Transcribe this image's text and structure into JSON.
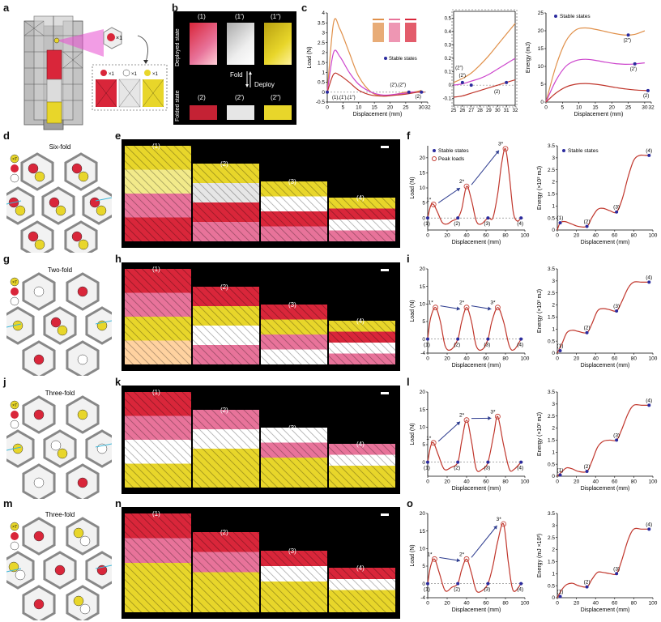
{
  "panel_letters": {
    "a": "a",
    "b": "b",
    "c": "c",
    "d": "d",
    "e": "e",
    "f": "f",
    "g": "g",
    "h": "h",
    "i": "i",
    "j": "j",
    "k": "k",
    "l": "l",
    "m": "m",
    "n": "n",
    "o": "o"
  },
  "panel_a": {
    "callout_x1": "×1",
    "legend_x1a": "×1",
    "legend_x1b": "×1",
    "legend_x1c": "×1"
  },
  "panel_b": {
    "row_labels": [
      "Deployed state",
      "Folded state"
    ],
    "top_labels": [
      "(1)",
      "(1′)",
      "(1″)"
    ],
    "bottom_labels": [
      "(2)",
      "(2′)",
      "(2″)"
    ],
    "fold": "Fold",
    "deploy": "Deploy"
  },
  "colors": {
    "red": "#d9263a",
    "pink": "#e8739a",
    "yellow": "#e8d62a",
    "white": "#dddddd",
    "gray": "#9a9a9a",
    "curve": "#c0362c",
    "orange": "#e0904a",
    "magenta": "#cc44cc",
    "stable": "#2b2b9e",
    "arrow": "#2b3a8e"
  },
  "hex_panels": [
    {
      "letter": "d",
      "title": "Six-fold",
      "legend": [
        "×7",
        "",
        ""
      ]
    },
    {
      "letter": "g",
      "title": "Two-fold",
      "legend": [
        "×7",
        "",
        ""
      ]
    },
    {
      "letter": "j",
      "title": "Three-fold",
      "legend": [
        "×7",
        "",
        ""
      ]
    },
    {
      "letter": "m",
      "title": "Three-fold",
      "legend": [
        "×7",
        "",
        ""
      ]
    }
  ],
  "photo_labels": [
    "(1)",
    "(2)",
    "(3)",
    "(4)"
  ],
  "chart_data": [
    {
      "id": "c-load",
      "type": "line",
      "xlabel": "Displacement (mm)",
      "ylabel": "Load (N)",
      "xlim": [
        0,
        32
      ],
      "ylim": [
        -0.5,
        4.0
      ],
      "xticks": [
        0,
        5,
        10,
        15,
        20,
        25,
        30,
        32
      ],
      "yticks": [
        -0.5,
        0,
        0.5,
        1.0,
        1.5,
        2.0,
        2.5,
        3.0,
        3.5,
        4.0
      ],
      "legend": "Stable states",
      "annotations": [
        "(1),(1′),(1″)",
        "(2′),(2″)",
        "(2)"
      ],
      "series": [
        {
          "color": "#e0904a",
          "x": [
            0,
            2,
            4,
            7,
            10,
            14,
            18,
            22,
            25,
            27,
            29,
            30
          ],
          "y": [
            0,
            3.5,
            3.2,
            2.0,
            0.8,
            0.0,
            -0.2,
            -0.1,
            0.0,
            0.0,
            0.05,
            0.1
          ]
        },
        {
          "color": "#cc44cc",
          "x": [
            0,
            2,
            4,
            7,
            10,
            14,
            18,
            22,
            25,
            27,
            29,
            30
          ],
          "y": [
            0,
            2.0,
            1.8,
            1.0,
            0.4,
            0.0,
            -0.15,
            -0.1,
            -0.05,
            0.0,
            0.0,
            0.05
          ]
        },
        {
          "color": "#c0362c",
          "x": [
            0,
            2,
            4,
            7,
            10,
            14,
            18,
            22,
            25,
            27,
            29,
            31
          ],
          "y": [
            0,
            0.9,
            0.85,
            0.5,
            0.1,
            -0.15,
            -0.2,
            -0.15,
            -0.1,
            -0.05,
            0.0,
            0.0
          ]
        }
      ]
    },
    {
      "id": "c-zoom",
      "type": "line",
      "xlim": [
        25,
        32
      ],
      "ylim": [
        -0.15,
        0.55
      ],
      "xticks": [
        25,
        26,
        27,
        28,
        29,
        30,
        31,
        32
      ],
      "yticks": [
        -0.1,
        0,
        0.1,
        0.2,
        0.3,
        0.4,
        0.5
      ],
      "annotations": [
        "(2″)",
        "(2′)",
        "(2)"
      ],
      "series": [
        {
          "color": "#e0904a",
          "x": [
            25,
            26,
            27,
            28,
            29,
            30,
            31,
            32
          ],
          "y": [
            0.02,
            0.05,
            0.09,
            0.15,
            0.22,
            0.3,
            0.38,
            0.46
          ]
        },
        {
          "color": "#cc44cc",
          "x": [
            25,
            26,
            27,
            28,
            29,
            30,
            31,
            32
          ],
          "y": [
            0.0,
            0.01,
            0.03,
            0.05,
            0.08,
            0.12,
            0.16,
            0.2
          ]
        },
        {
          "color": "#c0362c",
          "x": [
            25,
            26,
            27,
            28,
            29,
            30,
            31,
            32
          ],
          "y": [
            -0.09,
            -0.08,
            -0.06,
            -0.04,
            -0.02,
            0.0,
            0.02,
            0.04
          ]
        }
      ]
    },
    {
      "id": "c-energy",
      "type": "line",
      "xlabel": "Displacement (mm)",
      "ylabel": "Energy (mJ)",
      "xlim": [
        0,
        32
      ],
      "ylim": [
        0,
        25
      ],
      "xticks": [
        0,
        5,
        10,
        15,
        20,
        25,
        30,
        32
      ],
      "yticks": [
        0,
        5,
        10,
        15,
        20,
        25
      ],
      "legend": "Stable states",
      "annotations": [
        "(2″)",
        "(2′)",
        "(2)"
      ],
      "series": [
        {
          "color": "#e0904a",
          "x": [
            0,
            3,
            6,
            9,
            12,
            15,
            18,
            21,
            24,
            27,
            30
          ],
          "y": [
            0,
            10,
            17,
            20.2,
            20.8,
            20.4,
            19.8,
            19.2,
            18.8,
            19.0,
            20.0
          ]
        },
        {
          "color": "#cc44cc",
          "x": [
            0,
            3,
            6,
            9,
            12,
            15,
            18,
            21,
            24,
            27,
            30
          ],
          "y": [
            0,
            6,
            10,
            11.6,
            12.0,
            11.7,
            11.2,
            10.8,
            10.6,
            10.7,
            11.0
          ]
        },
        {
          "color": "#c0362c",
          "x": [
            0,
            3,
            6,
            9,
            12,
            15,
            18,
            21,
            24,
            27,
            31
          ],
          "y": [
            0,
            2.5,
            4.2,
            5.0,
            5.2,
            5.0,
            4.6,
            4.1,
            3.7,
            3.4,
            3.2
          ]
        }
      ],
      "stable_points": [
        [
          25,
          18.8
        ],
        [
          27,
          10.7
        ],
        [
          31,
          3.2
        ]
      ]
    },
    {
      "id": "f-load",
      "type": "line",
      "xlabel": "Displacement (mm)",
      "ylabel": "Load (N)",
      "xlim": [
        0,
        100
      ],
      "ylim": [
        -4,
        24
      ],
      "xticks": [
        0,
        20,
        40,
        60,
        80,
        100
      ],
      "yticks": [
        0,
        5,
        10,
        15,
        20
      ],
      "legend": [
        "Stable states",
        "Peak loads"
      ],
      "x": [
        0,
        3,
        6,
        10,
        15,
        20,
        25,
        31,
        35,
        40,
        45,
        50,
        55,
        62,
        67,
        72,
        76,
        80,
        84,
        88,
        92,
        96
      ],
      "y": [
        0,
        4,
        4.5,
        2,
        -1.5,
        -2,
        -1,
        0,
        3,
        10.5,
        6,
        -1,
        -2,
        0,
        0,
        8,
        18,
        23,
        14,
        2,
        -1,
        0
      ],
      "peaks": [
        [
          6,
          4.5,
          "1*"
        ],
        [
          40,
          10.5,
          "2*"
        ],
        [
          80,
          23,
          "3*"
        ]
      ],
      "stable": [
        [
          0,
          0,
          "(1)"
        ],
        [
          31,
          0,
          "(2)"
        ],
        [
          62,
          0,
          "(3)"
        ],
        [
          96,
          0,
          "(4)"
        ]
      ]
    },
    {
      "id": "f-energy",
      "type": "line",
      "xlabel": "Displacement (mm)",
      "ylabel": "Energy (×10² mJ)",
      "xlim": [
        0,
        100
      ],
      "ylim": [
        0,
        3.5
      ],
      "xticks": [
        0,
        20,
        40,
        60,
        80,
        100
      ],
      "yticks": [
        0,
        0.5,
        1.0,
        1.5,
        2.0,
        2.5,
        3.0,
        3.5
      ],
      "legend": [
        "Stable states"
      ],
      "x": [
        0,
        3,
        8,
        15,
        22,
        31,
        36,
        42,
        48,
        55,
        62,
        68,
        74,
        80,
        86,
        92,
        96
      ],
      "y": [
        0,
        0.3,
        0.35,
        0.25,
        0.15,
        0.15,
        0.5,
        0.85,
        0.9,
        0.8,
        0.75,
        1.3,
        2.2,
        2.9,
        3.1,
        3.1,
        3.1
      ],
      "stable": [
        [
          3,
          0.3,
          "(1)"
        ],
        [
          31,
          0.15,
          "(2)"
        ],
        [
          62,
          0.75,
          "(3)"
        ],
        [
          96,
          3.1,
          "(4)"
        ]
      ]
    },
    {
      "id": "i-load",
      "type": "line",
      "xlabel": "Displacement (mm)",
      "ylabel": "Load (N)",
      "xlim": [
        0,
        100
      ],
      "ylim": [
        -4,
        20
      ],
      "xticks": [
        0,
        20,
        40,
        60,
        80,
        100
      ],
      "yticks": [
        -4,
        0,
        5,
        10,
        15,
        20
      ],
      "x": [
        0,
        3,
        8,
        13,
        18,
        24,
        31,
        35,
        40,
        45,
        50,
        56,
        62,
        66,
        72,
        78,
        84,
        89,
        96
      ],
      "y": [
        0,
        6,
        9,
        5,
        -2,
        -3,
        0,
        5,
        9,
        5,
        -2,
        -3,
        0,
        5,
        9,
        5,
        -2,
        -3,
        0
      ],
      "peaks": [
        [
          8,
          9,
          "1*"
        ],
        [
          40,
          9,
          "2*"
        ],
        [
          72,
          9,
          "3*"
        ]
      ],
      "stable": [
        [
          0,
          0,
          "(1)"
        ],
        [
          31,
          0,
          "(2)"
        ],
        [
          62,
          0,
          "(3)"
        ],
        [
          96,
          0,
          "(4)"
        ]
      ]
    },
    {
      "id": "i-energy",
      "type": "line",
      "xlabel": "Displacement (mm)",
      "ylabel": "Energy (×10² mJ)",
      "xlim": [
        0,
        100
      ],
      "ylim": [
        0,
        3.5
      ],
      "xticks": [
        0,
        20,
        40,
        60,
        80,
        100
      ],
      "yticks": [
        0,
        0.5,
        1.0,
        1.5,
        2.0,
        2.5,
        3.0,
        3.5
      ],
      "x": [
        0,
        5,
        10,
        16,
        22,
        31,
        36,
        42,
        48,
        55,
        62,
        67,
        74,
        80,
        88,
        96
      ],
      "y": [
        0,
        0.4,
        0.85,
        0.95,
        0.9,
        0.85,
        1.2,
        1.75,
        1.85,
        1.8,
        1.75,
        2.1,
        2.7,
        2.95,
        2.95,
        2.95
      ],
      "stable": [
        [
          3,
          0.1,
          "(1)"
        ],
        [
          31,
          0.85,
          "(2)"
        ],
        [
          62,
          1.75,
          "(3)"
        ],
        [
          96,
          2.95,
          "(4)"
        ]
      ]
    },
    {
      "id": "l-load",
      "type": "line",
      "xlabel": "Displacement (mm)",
      "ylabel": "Load (N)",
      "xlim": [
        0,
        100
      ],
      "ylim": [
        -4,
        20
      ],
      "xticks": [
        0,
        20,
        40,
        60,
        80,
        100
      ],
      "yticks": [
        0,
        5,
        10,
        15,
        20
      ],
      "x": [
        0,
        3,
        6,
        11,
        17,
        24,
        31,
        35,
        40,
        45,
        50,
        56,
        62,
        68,
        72,
        78,
        84,
        89,
        96
      ],
      "y": [
        0,
        4.5,
        5.5,
        2,
        -2,
        -1.5,
        0,
        6,
        12,
        6,
        -2,
        -2,
        0,
        8,
        13,
        5,
        -2,
        -2,
        0
      ],
      "peaks": [
        [
          6,
          5.5,
          "1*"
        ],
        [
          40,
          12,
          "2*"
        ],
        [
          72,
          13,
          "3*"
        ]
      ],
      "stable": [
        [
          0,
          0,
          "(1)"
        ],
        [
          31,
          0,
          "(2)"
        ],
        [
          62,
          0,
          "(3)"
        ],
        [
          96,
          0,
          "(4)"
        ]
      ]
    },
    {
      "id": "l-energy",
      "type": "line",
      "xlabel": "Displacement (mm)",
      "ylabel": "Energy (×10² mJ)",
      "xlim": [
        0,
        100
      ],
      "ylim": [
        0,
        3.5
      ],
      "xticks": [
        0,
        20,
        40,
        60,
        80,
        100
      ],
      "yticks": [
        0,
        0.5,
        1.0,
        1.5,
        2.0,
        2.5,
        3.0,
        3.5
      ],
      "x": [
        0,
        5,
        10,
        16,
        22,
        31,
        36,
        42,
        48,
        55,
        62,
        67,
        74,
        80,
        88,
        96
      ],
      "y": [
        0,
        0.2,
        0.35,
        0.3,
        0.2,
        0.2,
        0.6,
        1.2,
        1.45,
        1.5,
        1.5,
        1.9,
        2.6,
        2.95,
        2.95,
        2.95
      ],
      "stable": [
        [
          3,
          0.05,
          "(1)"
        ],
        [
          31,
          0.2,
          "(2)"
        ],
        [
          62,
          1.5,
          "(3)"
        ],
        [
          96,
          2.95,
          "(4)"
        ]
      ]
    },
    {
      "id": "o-load",
      "type": "line",
      "xlabel": "Displacement (mm)",
      "ylabel": "Load (N)",
      "xlim": [
        0,
        100
      ],
      "ylim": [
        -4,
        20
      ],
      "xticks": [
        0,
        20,
        40,
        60,
        80,
        100
      ],
      "yticks": [
        -4,
        0,
        5,
        10,
        15,
        20
      ],
      "x": [
        0,
        3,
        7,
        12,
        18,
        25,
        31,
        35,
        40,
        45,
        50,
        56,
        62,
        67,
        72,
        78,
        83,
        88,
        96
      ],
      "y": [
        0,
        5,
        7,
        3,
        -2,
        -1,
        0,
        4,
        7,
        3,
        -2,
        -2,
        0,
        5,
        12,
        17,
        6,
        -2,
        0
      ],
      "peaks": [
        [
          7,
          7,
          "1*"
        ],
        [
          40,
          7,
          "2*"
        ],
        [
          78,
          17,
          "3*"
        ]
      ],
      "stable": [
        [
          0,
          0,
          "(1)"
        ],
        [
          31,
          0,
          "(2)"
        ],
        [
          62,
          0,
          "(3)"
        ],
        [
          96,
          0,
          "(4)"
        ]
      ]
    },
    {
      "id": "o-energy",
      "type": "line",
      "xlabel": "Displacement (mm)",
      "ylabel": "Energy (mJ ×10²)",
      "xlim": [
        0,
        100
      ],
      "ylim": [
        0,
        3.5
      ],
      "xticks": [
        0,
        20,
        40,
        60,
        80,
        100
      ],
      "yticks": [
        0,
        0.5,
        1.0,
        1.5,
        2.0,
        2.5,
        3.0,
        3.5
      ],
      "x": [
        0,
        5,
        10,
        16,
        22,
        31,
        36,
        42,
        48,
        55,
        62,
        67,
        74,
        80,
        88,
        96
      ],
      "y": [
        0,
        0.35,
        0.55,
        0.6,
        0.5,
        0.45,
        0.75,
        1.05,
        1.05,
        1.0,
        1.0,
        1.5,
        2.4,
        2.85,
        2.85,
        2.85
      ],
      "stable": [
        [
          3,
          0.05,
          "(1)"
        ],
        [
          31,
          0.45,
          "(2)"
        ],
        [
          62,
          1.0,
          "(3)"
        ],
        [
          96,
          2.85,
          "(4)"
        ]
      ]
    }
  ]
}
